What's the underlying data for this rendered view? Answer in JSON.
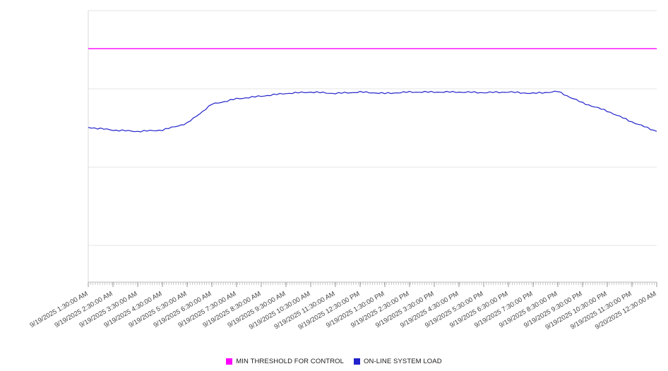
{
  "chart": {
    "legend": {
      "items": [
        {
          "label": "MIN THRESHOLD FOR CONTROL",
          "color": "#ff00ff"
        },
        {
          "label": "ON-LINE SYSTEM LOAD",
          "color": "#2222cc"
        }
      ]
    }
  },
  "chart_data": {
    "type": "line",
    "title": "",
    "xlabel": "",
    "ylabel": "",
    "legend_position": "bottom",
    "grid": true,
    "ylim": [
      0,
      100
    ],
    "gridline_values": [
      13.5,
      42.3,
      71.2,
      100
    ],
    "x": [
      "9/19/2025 1:30:00 AM",
      "9/19/2025 2:30:00 AM",
      "9/19/2025 3:30:00 AM",
      "9/19/2025 4:30:00 AM",
      "9/19/2025 5:30:00 AM",
      "9/19/2025 6:30:00 AM",
      "9/19/2025 7:30:00 AM",
      "9/19/2025 8:30:00 AM",
      "9/19/2025 9:30:00 AM",
      "9/19/2025 10:30:00 AM",
      "9/19/2025 11:30:00 AM",
      "9/19/2025 12:30:00 PM",
      "9/19/2025 1:30:00 PM",
      "9/19/2025 2:30:00 PM",
      "9/19/2025 3:30:00 PM",
      "9/19/2025 4:30:00 PM",
      "9/19/2025 5:30:00 PM",
      "9/19/2025 6:30:00 PM",
      "9/19/2025 7:30:00 PM",
      "9/19/2025 8:30:00 PM",
      "9/19/2025 9:30:00 PM",
      "9/19/2025 10:30:00 PM",
      "9/19/2025 11:30:00 PM",
      "9/20/2025 12:30:00 AM"
    ],
    "series": [
      {
        "name": "MIN THRESHOLD FOR CONTROL",
        "color": "#ff00ff",
        "style": "horizontal-threshold",
        "values": [
          86,
          86,
          86,
          86,
          86,
          86,
          86,
          86,
          86,
          86,
          86,
          86,
          86,
          86,
          86,
          86,
          86,
          86,
          86,
          86,
          86,
          86,
          86,
          86
        ]
      },
      {
        "name": "ON-LINE SYSTEM LOAD",
        "color": "#2222cc",
        "style": "line",
        "values": [
          57,
          56,
          55.5,
          56,
          58.5,
          65.5,
          67.5,
          68.5,
          69.5,
          70,
          69.5,
          70,
          69.5,
          70,
          70,
          70,
          69.8,
          70,
          69.5,
          70.2,
          66,
          63,
          59,
          55.5
        ]
      }
    ]
  }
}
